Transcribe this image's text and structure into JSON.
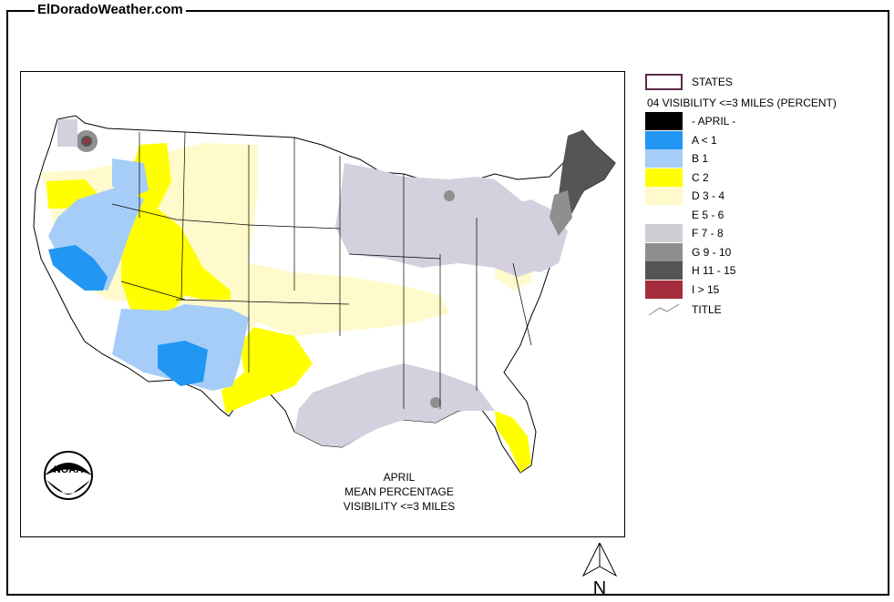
{
  "site": {
    "title": "ElDoradoWeather.com"
  },
  "map": {
    "caption_lines": [
      "APRIL",
      "MEAN PERCENTAGE",
      "VISIBILITY <=3 MILES"
    ],
    "logo_text": "NOAA",
    "north_label": "N"
  },
  "legend": {
    "states_label": "STATES",
    "heading": "04 VISIBILITY <=3 MILES (PERCENT)",
    "title_label": "TITLE",
    "classes": [
      {
        "label": "- APRIL -",
        "color": "#000000"
      },
      {
        "label": "A < 1",
        "color": "#2196f3"
      },
      {
        "label": "B 1",
        "color": "#a6cdf7"
      },
      {
        "label": "C 2",
        "color": "#ffff00"
      },
      {
        "label": "D 3 - 4",
        "color": "#fffacc"
      },
      {
        "label": "E 5 - 6",
        "color": "#ffffff"
      },
      {
        "label": "F 7 - 8",
        "color": "#cfcfd3"
      },
      {
        "label": "G 9 - 10",
        "color": "#8f8f8f"
      },
      {
        "label": "H 11 - 15",
        "color": "#555555"
      },
      {
        "label": "I > 15",
        "color": "#a42d3d"
      }
    ]
  },
  "colors": {
    "states_outline": "#5a2a4a",
    "lavender": "#d4d0de"
  }
}
